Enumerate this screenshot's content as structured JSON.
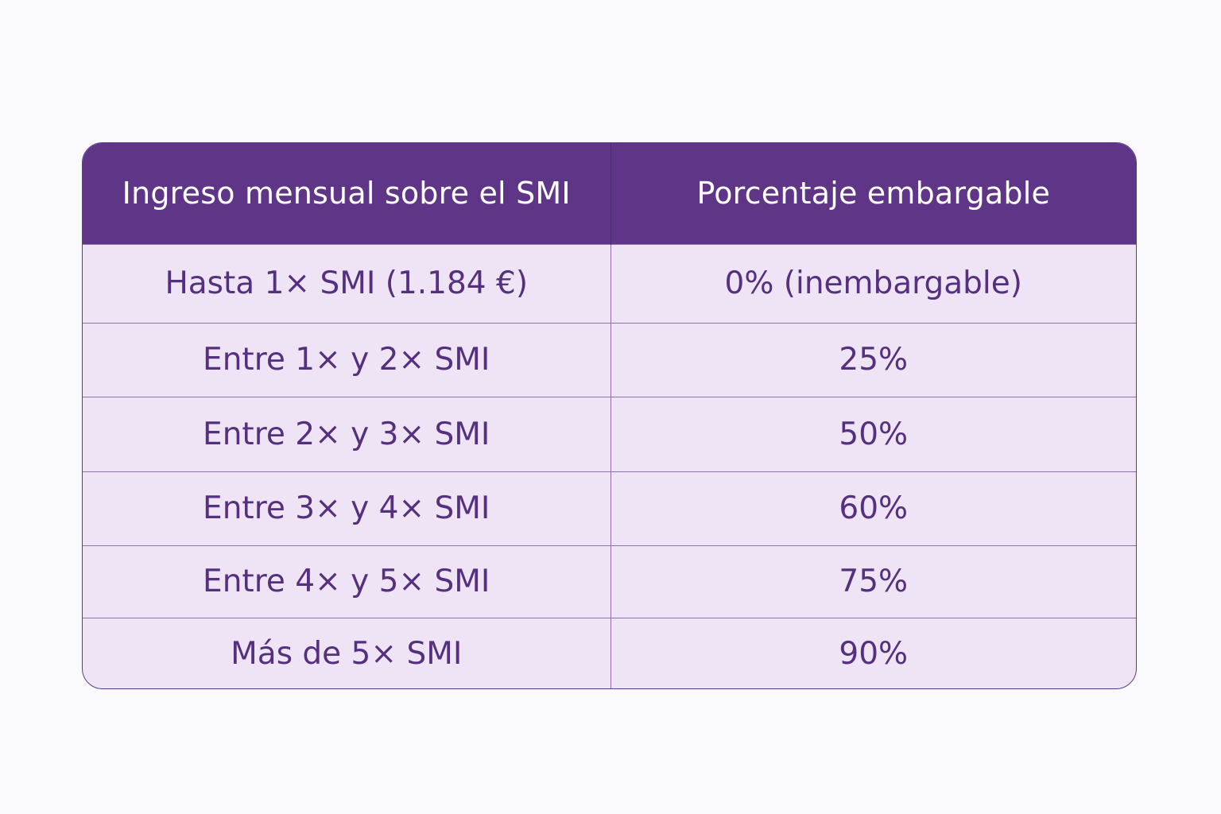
{
  "chart_data": {
    "type": "table",
    "columns": [
      "Ingreso mensual sobre el SMI",
      "Porcentaje embargable"
    ],
    "rows": [
      [
        "Hasta 1× SMI (1.184 €)",
        "0% (inembargable)"
      ],
      [
        "Entre 1× y 2× SMI",
        "25%"
      ],
      [
        "Entre 2× y 3× SMI",
        "50%"
      ],
      [
        "Entre 3× y 4× SMI",
        "60%"
      ],
      [
        "Entre 4× y 5× SMI",
        "75%"
      ],
      [
        "Más de 5× SMI",
        "90%"
      ]
    ],
    "percentages": [
      0,
      25,
      50,
      60,
      75,
      90
    ]
  },
  "colors": {
    "header_bg": "#5E3587",
    "header_text": "#FFFFFF",
    "row_bg": "#EFE4F5",
    "row_text": "#54307E",
    "border": "#8C6FA8",
    "page_bg": "#FAF9FC"
  }
}
